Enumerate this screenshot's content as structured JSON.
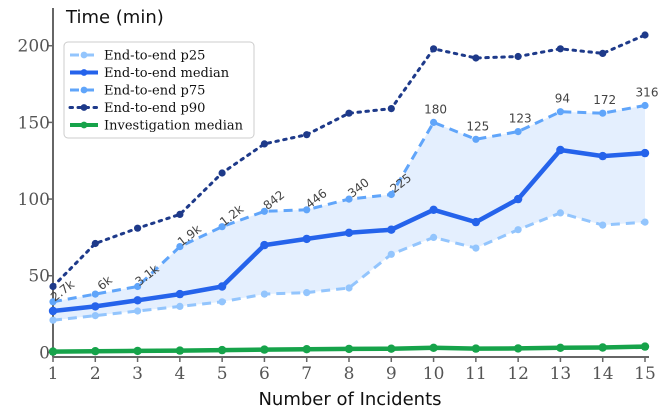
{
  "chart_data": {
    "type": "line",
    "title": "",
    "xlabel": "Number of Incidents",
    "ylabel": "Time (min)",
    "x": [
      1,
      2,
      3,
      4,
      5,
      6,
      7,
      8,
      9,
      10,
      11,
      12,
      13,
      14,
      15
    ],
    "xlim": [
      1,
      15
    ],
    "ylim": [
      -3,
      222
    ],
    "yticks": [
      0,
      50,
      100,
      150,
      200
    ],
    "grid": false,
    "legend_position": "top-left",
    "series": [
      {
        "name": "End-to-end p25",
        "color": "#93c5fd",
        "style": "dashed",
        "values": [
          21,
          24,
          27,
          30,
          33,
          38,
          39,
          42,
          64,
          75,
          68,
          80,
          91,
          83,
          85
        ]
      },
      {
        "name": "End-to-end median",
        "color": "#2563eb",
        "style": "solid",
        "values": [
          27,
          30,
          34,
          38,
          43,
          70,
          74,
          78,
          80,
          93,
          85,
          100,
          132,
          128,
          130
        ]
      },
      {
        "name": "End-to-end p75",
        "color": "#60a5fa",
        "style": "dashed",
        "values": [
          33,
          38,
          43,
          69,
          82,
          92,
          93,
          100,
          103,
          150,
          139,
          144,
          157,
          156,
          161
        ]
      },
      {
        "name": "End-to-end p90",
        "color": "#1e3a8a",
        "style": "dotted",
        "values": [
          43,
          71,
          81,
          90,
          117,
          136,
          142,
          156,
          159,
          198,
          192,
          193,
          198,
          195,
          207
        ]
      },
      {
        "name": "Investigation median",
        "color": "#16a34a",
        "style": "solid",
        "values": [
          0.5,
          0.8,
          1.0,
          1.2,
          1.5,
          1.8,
          2.1,
          2.3,
          2.4,
          3.0,
          2.5,
          2.6,
          3.0,
          3.2,
          3.8
        ]
      }
    ],
    "band": {
      "between": [
        "End-to-end p25",
        "End-to-end p75"
      ],
      "color": "#dbeafe"
    },
    "count_labels": [
      "2.7k",
      "6k",
      "3.1k",
      "1.9k",
      "1.2k",
      "842",
      "446",
      "340",
      "225",
      "180",
      "125",
      "123",
      "94",
      "172",
      "316"
    ]
  }
}
